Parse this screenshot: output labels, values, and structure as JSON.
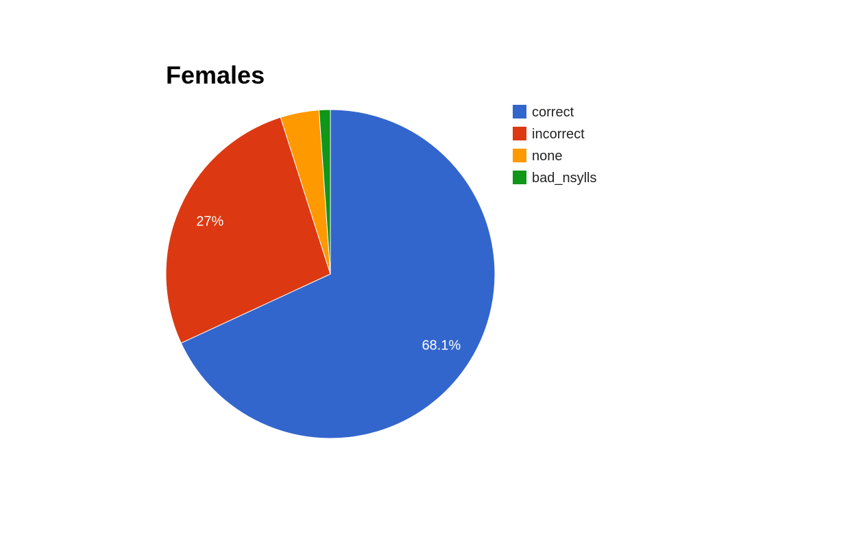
{
  "chart_data": {
    "type": "pie",
    "title": "Females",
    "start_angle_deg": 0,
    "direction": "clockwise",
    "legend_position": "right",
    "slices": [
      {
        "name": "correct",
        "value": 68.1,
        "label": "68.1%",
        "color": "#3366cc"
      },
      {
        "name": "incorrect",
        "value": 27.0,
        "label": "27%",
        "color": "#dc3912"
      },
      {
        "name": "none",
        "value": 3.8,
        "label": "",
        "color": "#ff9900"
      },
      {
        "name": "bad_nsylls",
        "value": 1.1,
        "label": "",
        "color": "#109618"
      }
    ]
  }
}
